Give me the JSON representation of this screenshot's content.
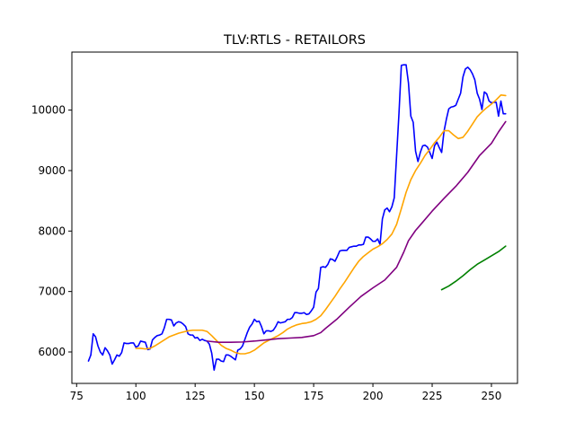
{
  "chart_data": {
    "type": "line",
    "title": "TLV:RTLS - RETAILORS",
    "xlabel": "",
    "ylabel": "",
    "xlim": [
      73,
      261
    ],
    "ylim": [
      5480,
      10960
    ],
    "grid": false,
    "x_ticks": [
      75,
      100,
      125,
      150,
      175,
      200,
      225,
      250
    ],
    "y_ticks": [
      6000,
      7000,
      8000,
      9000,
      10000
    ],
    "series": [
      {
        "color": "#0000ff",
        "points": [
          [
            80,
            5850
          ],
          [
            81,
            5950
          ],
          [
            82,
            6300
          ],
          [
            83,
            6250
          ],
          [
            84,
            6100
          ],
          [
            85,
            6000
          ],
          [
            86,
            5950
          ],
          [
            87,
            6070
          ],
          [
            88,
            6020
          ],
          [
            89,
            5950
          ],
          [
            90,
            5800
          ],
          [
            91,
            5870
          ],
          [
            92,
            5950
          ],
          [
            93,
            5930
          ],
          [
            94,
            5990
          ],
          [
            95,
            6150
          ],
          [
            96,
            6140
          ],
          [
            97,
            6140
          ],
          [
            98,
            6150
          ],
          [
            99,
            6150
          ],
          [
            100,
            6080
          ],
          [
            101,
            6100
          ],
          [
            102,
            6180
          ],
          [
            103,
            6170
          ],
          [
            104,
            6160
          ],
          [
            105,
            6040
          ],
          [
            106,
            6050
          ],
          [
            107,
            6200
          ],
          [
            108,
            6240
          ],
          [
            109,
            6270
          ],
          [
            110,
            6280
          ],
          [
            111,
            6300
          ],
          [
            112,
            6400
          ],
          [
            113,
            6540
          ],
          [
            114,
            6540
          ],
          [
            115,
            6530
          ],
          [
            116,
            6430
          ],
          [
            117,
            6480
          ],
          [
            118,
            6500
          ],
          [
            119,
            6490
          ],
          [
            120,
            6460
          ],
          [
            121,
            6420
          ],
          [
            122,
            6300
          ],
          [
            123,
            6280
          ],
          [
            124,
            6280
          ],
          [
            125,
            6230
          ],
          [
            126,
            6240
          ],
          [
            127,
            6190
          ],
          [
            128,
            6210
          ],
          [
            129,
            6190
          ],
          [
            130,
            6180
          ],
          [
            131,
            6130
          ],
          [
            132,
            5980
          ],
          [
            133,
            5700
          ],
          [
            134,
            5880
          ],
          [
            135,
            5880
          ],
          [
            136,
            5850
          ],
          [
            137,
            5840
          ],
          [
            138,
            5950
          ],
          [
            139,
            5950
          ],
          [
            140,
            5930
          ],
          [
            141,
            5900
          ],
          [
            142,
            5870
          ],
          [
            143,
            6030
          ],
          [
            144,
            6050
          ],
          [
            145,
            6100
          ],
          [
            146,
            6210
          ],
          [
            147,
            6320
          ],
          [
            148,
            6410
          ],
          [
            149,
            6460
          ],
          [
            150,
            6540
          ],
          [
            151,
            6500
          ],
          [
            152,
            6510
          ],
          [
            153,
            6420
          ],
          [
            154,
            6300
          ],
          [
            155,
            6350
          ],
          [
            156,
            6350
          ],
          [
            157,
            6340
          ],
          [
            158,
            6360
          ],
          [
            159,
            6420
          ],
          [
            160,
            6500
          ],
          [
            161,
            6480
          ],
          [
            162,
            6490
          ],
          [
            163,
            6500
          ],
          [
            164,
            6540
          ],
          [
            165,
            6540
          ],
          [
            166,
            6570
          ],
          [
            167,
            6650
          ],
          [
            168,
            6650
          ],
          [
            169,
            6640
          ],
          [
            170,
            6640
          ],
          [
            171,
            6650
          ],
          [
            172,
            6620
          ],
          [
            173,
            6630
          ],
          [
            174,
            6680
          ],
          [
            175,
            6740
          ],
          [
            176,
            6990
          ],
          [
            177,
            7050
          ],
          [
            178,
            7400
          ],
          [
            179,
            7410
          ],
          [
            180,
            7400
          ],
          [
            181,
            7450
          ],
          [
            182,
            7540
          ],
          [
            183,
            7530
          ],
          [
            184,
            7500
          ],
          [
            185,
            7580
          ],
          [
            186,
            7670
          ],
          [
            187,
            7680
          ],
          [
            188,
            7680
          ],
          [
            189,
            7680
          ],
          [
            190,
            7730
          ],
          [
            191,
            7740
          ],
          [
            192,
            7750
          ],
          [
            193,
            7750
          ],
          [
            194,
            7770
          ],
          [
            195,
            7770
          ],
          [
            196,
            7780
          ],
          [
            197,
            7900
          ],
          [
            198,
            7900
          ],
          [
            199,
            7870
          ],
          [
            200,
            7830
          ],
          [
            201,
            7830
          ],
          [
            202,
            7870
          ],
          [
            203,
            7780
          ],
          [
            204,
            8200
          ],
          [
            205,
            8350
          ],
          [
            206,
            8380
          ],
          [
            207,
            8320
          ],
          [
            208,
            8400
          ],
          [
            209,
            8550
          ],
          [
            210,
            9250
          ],
          [
            211,
            9950
          ],
          [
            212,
            10740
          ],
          [
            213,
            10750
          ],
          [
            214,
            10750
          ],
          [
            215,
            10450
          ],
          [
            216,
            9900
          ],
          [
            217,
            9800
          ],
          [
            218,
            9320
          ],
          [
            219,
            9150
          ],
          [
            220,
            9300
          ],
          [
            221,
            9410
          ],
          [
            222,
            9420
          ],
          [
            223,
            9390
          ],
          [
            224,
            9300
          ],
          [
            225,
            9200
          ],
          [
            226,
            9410
          ],
          [
            227,
            9470
          ],
          [
            228,
            9380
          ],
          [
            229,
            9300
          ],
          [
            230,
            9650
          ],
          [
            231,
            9850
          ],
          [
            232,
            10020
          ],
          [
            233,
            10050
          ],
          [
            234,
            10060
          ],
          [
            235,
            10080
          ],
          [
            236,
            10180
          ],
          [
            237,
            10280
          ],
          [
            238,
            10550
          ],
          [
            239,
            10680
          ],
          [
            240,
            10710
          ],
          [
            241,
            10670
          ],
          [
            242,
            10600
          ],
          [
            243,
            10500
          ],
          [
            244,
            10280
          ],
          [
            245,
            10180
          ],
          [
            246,
            10010
          ],
          [
            247,
            10300
          ],
          [
            248,
            10270
          ],
          [
            249,
            10150
          ],
          [
            250,
            10120
          ],
          [
            251,
            10130
          ],
          [
            252,
            10130
          ],
          [
            253,
            9900
          ],
          [
            254,
            10150
          ],
          [
            255,
            9940
          ],
          [
            256,
            9940
          ]
        ]
      },
      {
        "color": "#ffa500",
        "points": [
          [
            100,
            6060
          ],
          [
            102,
            6060
          ],
          [
            104,
            6050
          ],
          [
            106,
            6060
          ],
          [
            108,
            6100
          ],
          [
            110,
            6150
          ],
          [
            112,
            6200
          ],
          [
            114,
            6250
          ],
          [
            116,
            6280
          ],
          [
            118,
            6310
          ],
          [
            120,
            6330
          ],
          [
            122,
            6350
          ],
          [
            124,
            6360
          ],
          [
            126,
            6360
          ],
          [
            128,
            6360
          ],
          [
            130,
            6340
          ],
          [
            132,
            6270
          ],
          [
            134,
            6190
          ],
          [
            136,
            6110
          ],
          [
            138,
            6060
          ],
          [
            140,
            6030
          ],
          [
            142,
            5990
          ],
          [
            144,
            5970
          ],
          [
            146,
            5970
          ],
          [
            148,
            5990
          ],
          [
            150,
            6030
          ],
          [
            152,
            6090
          ],
          [
            154,
            6150
          ],
          [
            156,
            6190
          ],
          [
            158,
            6230
          ],
          [
            160,
            6270
          ],
          [
            162,
            6320
          ],
          [
            164,
            6380
          ],
          [
            166,
            6420
          ],
          [
            168,
            6450
          ],
          [
            170,
            6470
          ],
          [
            172,
            6480
          ],
          [
            174,
            6500
          ],
          [
            176,
            6540
          ],
          [
            178,
            6600
          ],
          [
            180,
            6700
          ],
          [
            182,
            6810
          ],
          [
            184,
            6920
          ],
          [
            186,
            7040
          ],
          [
            188,
            7150
          ],
          [
            190,
            7270
          ],
          [
            192,
            7390
          ],
          [
            194,
            7500
          ],
          [
            196,
            7580
          ],
          [
            198,
            7640
          ],
          [
            200,
            7700
          ],
          [
            202,
            7740
          ],
          [
            204,
            7790
          ],
          [
            206,
            7860
          ],
          [
            208,
            7950
          ],
          [
            210,
            8110
          ],
          [
            212,
            8370
          ],
          [
            214,
            8640
          ],
          [
            216,
            8850
          ],
          [
            218,
            9000
          ],
          [
            220,
            9120
          ],
          [
            222,
            9250
          ],
          [
            224,
            9350
          ],
          [
            226,
            9460
          ],
          [
            228,
            9550
          ],
          [
            230,
            9660
          ],
          [
            232,
            9660
          ],
          [
            234,
            9590
          ],
          [
            236,
            9530
          ],
          [
            238,
            9550
          ],
          [
            240,
            9650
          ],
          [
            242,
            9770
          ],
          [
            244,
            9890
          ],
          [
            246,
            9970
          ],
          [
            248,
            10040
          ],
          [
            250,
            10100
          ],
          [
            252,
            10170
          ],
          [
            254,
            10250
          ],
          [
            256,
            10240
          ]
        ]
      },
      {
        "color": "#800080",
        "points": [
          [
            130,
            6180
          ],
          [
            135,
            6160
          ],
          [
            140,
            6160
          ],
          [
            145,
            6165
          ],
          [
            150,
            6180
          ],
          [
            155,
            6200
          ],
          [
            160,
            6220
          ],
          [
            165,
            6230
          ],
          [
            170,
            6240
          ],
          [
            175,
            6270
          ],
          [
            178,
            6320
          ],
          [
            180,
            6390
          ],
          [
            185,
            6550
          ],
          [
            190,
            6740
          ],
          [
            195,
            6920
          ],
          [
            200,
            7060
          ],
          [
            205,
            7190
          ],
          [
            210,
            7400
          ],
          [
            213,
            7650
          ],
          [
            215,
            7840
          ],
          [
            218,
            8010
          ],
          [
            220,
            8100
          ],
          [
            225,
            8330
          ],
          [
            230,
            8540
          ],
          [
            235,
            8740
          ],
          [
            240,
            8970
          ],
          [
            245,
            9250
          ],
          [
            250,
            9450
          ],
          [
            253,
            9640
          ],
          [
            256,
            9810
          ]
        ]
      },
      {
        "color": "#008000",
        "points": [
          [
            229,
            7030
          ],
          [
            232,
            7090
          ],
          [
            235,
            7170
          ],
          [
            238,
            7260
          ],
          [
            241,
            7360
          ],
          [
            244,
            7450
          ],
          [
            247,
            7520
          ],
          [
            250,
            7590
          ],
          [
            253,
            7660
          ],
          [
            256,
            7750
          ]
        ]
      }
    ]
  }
}
